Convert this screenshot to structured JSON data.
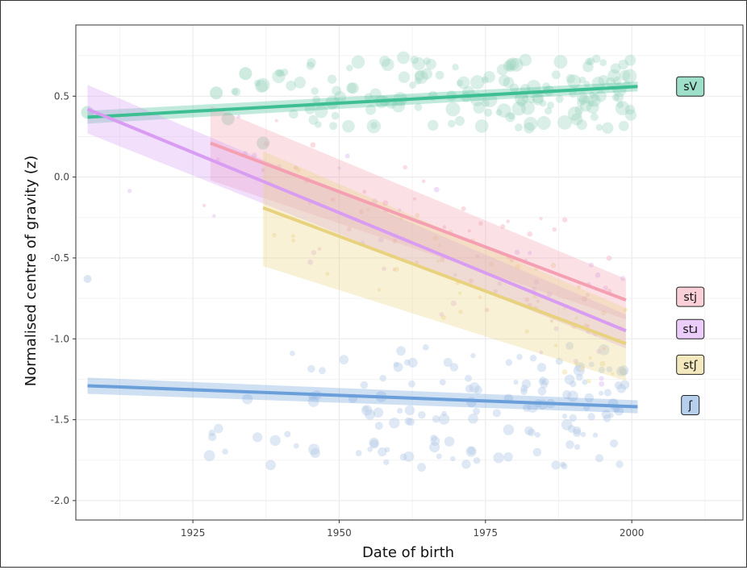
{
  "chart_data": {
    "type": "scatter",
    "title": "",
    "xlabel": "Date of birth",
    "ylabel": "Normalised centre of gravity (z)",
    "xlim": [
      1905,
      2019
    ],
    "ylim": [
      -2.12,
      0.94
    ],
    "x_ticks": [
      1925,
      1950,
      1975,
      2000
    ],
    "y_ticks": [
      0.5,
      0.0,
      -0.5,
      -1.0,
      -1.5,
      -2.0
    ],
    "x_tick_labels": [
      "1925",
      "1950",
      "1975",
      "2000"
    ],
    "y_tick_labels": [
      "0.5",
      "0.0",
      "-0.5",
      "-1.0",
      "-1.5",
      "-2.0"
    ],
    "grid": true,
    "legend": "direct labels at right end of lines",
    "series": [
      {
        "name": "sV",
        "color": "#3dbf93",
        "fit": {
          "x": [
            1907,
            2001
          ],
          "y": [
            0.37,
            0.56
          ]
        },
        "ribbon": {
          "x": [
            1907,
            2001
          ],
          "lo": [
            0.33,
            0.53
          ],
          "hi": [
            0.41,
            0.59
          ]
        }
      },
      {
        "name": "stj",
        "color": "#f4a0b2",
        "fit": {
          "x": [
            1928,
            1999
          ],
          "y": [
            0.21,
            -0.76
          ]
        },
        "ribbon": {
          "x": [
            1928,
            1999
          ],
          "lo": [
            -0.02,
            -0.88
          ],
          "hi": [
            0.44,
            -0.63
          ]
        }
      },
      {
        "name": "stɹ",
        "color": "#d89cf3",
        "fit": {
          "x": [
            1907,
            1999
          ],
          "y": [
            0.42,
            -0.95
          ]
        },
        "ribbon": {
          "x": [
            1907,
            1999
          ],
          "lo": [
            0.27,
            -1.06
          ],
          "hi": [
            0.57,
            -0.85
          ]
        }
      },
      {
        "name": "stʃ",
        "color": "#e8d27e",
        "fit": {
          "x": [
            1937,
            1999
          ],
          "y": [
            -0.19,
            -1.03
          ]
        },
        "ribbon": {
          "x": [
            1937,
            1999
          ],
          "lo": [
            -0.55,
            -1.26
          ],
          "hi": [
            0.16,
            -0.81
          ]
        }
      },
      {
        "name": "ʃ",
        "color": "#6b9fda",
        "fit": {
          "x": [
            1907,
            2001
          ],
          "y": [
            -1.29,
            -1.42
          ]
        },
        "ribbon": {
          "x": [
            1907,
            2001
          ],
          "lo": [
            -1.34,
            -1.46
          ],
          "hi": [
            -1.24,
            -1.38
          ]
        }
      }
    ]
  },
  "colors": {
    "sV_point": "#9fd8c2",
    "stj_point": "#f6c4cf",
    "str_point": "#e6c9f5",
    "stsh_point": "#f3e3b0",
    "sh_point": "#b8cde8",
    "grid": "#ebebeb"
  }
}
